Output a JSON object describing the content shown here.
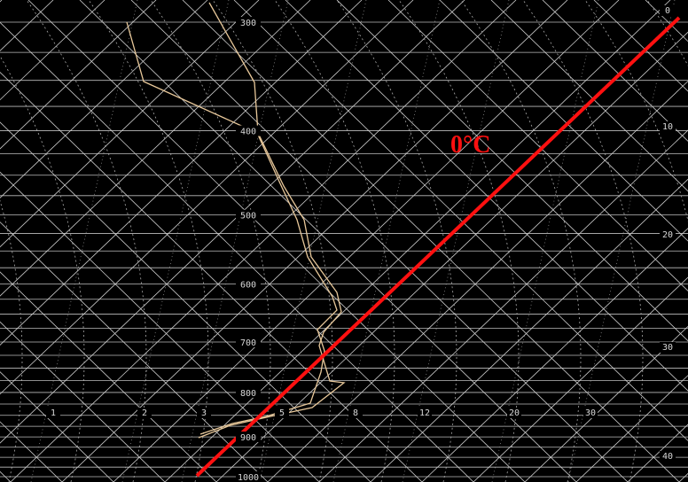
{
  "pressure_labels": [
    300,
    400,
    500,
    600,
    700,
    800,
    900,
    1000
  ],
  "mixing_ratio_labels": [
    1,
    2,
    3,
    5,
    8,
    12,
    20,
    30
  ],
  "temperature_labels": [
    0,
    10,
    20,
    30,
    40
  ],
  "annotation": "0°C"
}
